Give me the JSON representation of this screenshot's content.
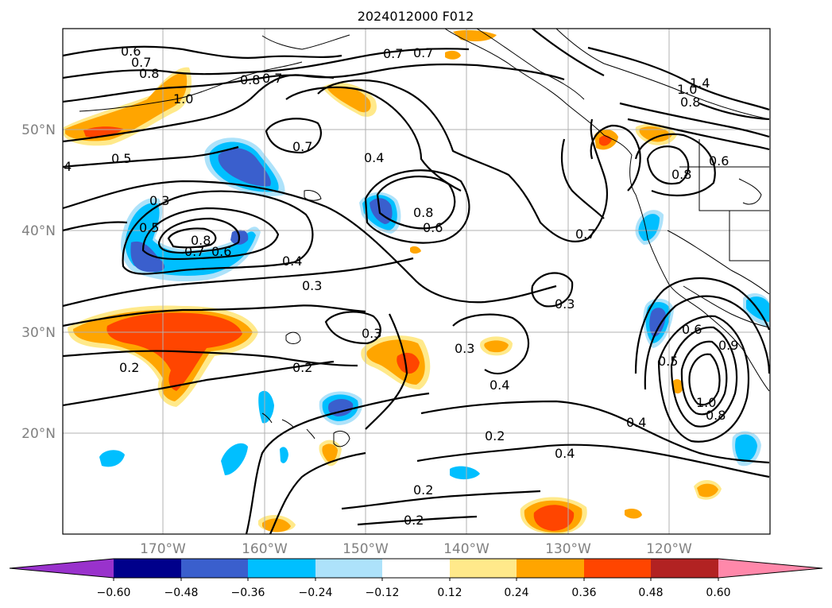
{
  "title": "2024012000 F012",
  "lat_labels": [
    "50°N",
    "40°N",
    "30°N",
    "20°N"
  ],
  "lon_labels": [
    "170°W",
    "160°W",
    "150°W",
    "140°W",
    "130°W",
    "120°W"
  ],
  "colorbar": {
    "ticks": [
      "−0.60",
      "−0.48",
      "−0.36",
      "−0.24",
      "−0.12",
      "0.12",
      "0.24",
      "0.36",
      "0.48",
      "0.60"
    ],
    "colors": [
      "#9932CC",
      "#00008B",
      "#3A5FCD",
      "#00BFFF",
      "#ADE2FA",
      "#FFFFFF",
      "#FFE98A",
      "#FFA500",
      "#FF4500",
      "#B22222",
      "#FF88AA"
    ]
  },
  "contour_labels": [
    "0.6",
    "0.7",
    "0.8",
    "1.0",
    "0.8",
    "0.7",
    "0.7",
    "0.7",
    "1.4",
    "1.0",
    "0.8",
    "0.5",
    "4",
    "0.7",
    "0.4",
    "0.3",
    "0.5",
    "0.8",
    "0.7",
    "0.6",
    "0.4",
    "0.8",
    "0.6",
    "0.7",
    "0.8",
    "0.6",
    "0.3",
    "0.3",
    "0.3",
    "0.3",
    "0.2",
    "0.4",
    "0.2",
    "0.5",
    "0.6",
    "0.9",
    "1.0",
    "0.8",
    "0.4",
    "0.2",
    "0.4",
    "0.2",
    "0.2"
  ]
}
